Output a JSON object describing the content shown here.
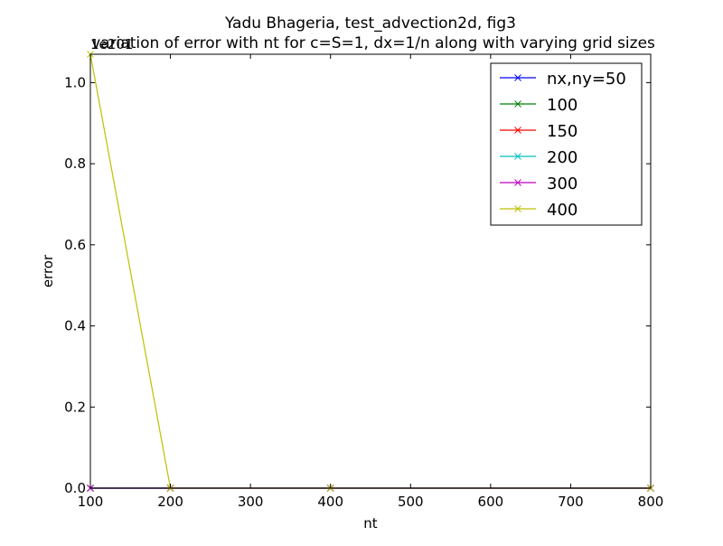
{
  "chart_data": {
    "type": "line",
    "title": "Yadu Bhageria, test_advection2d, fig3",
    "subtitle": "variation of error with nt for c=S=1, dx=1/n along with varying grid sizes",
    "xlabel": "nt",
    "ylabel": "error",
    "y_offset_label": "1e201",
    "xlim": [
      100,
      800
    ],
    "ylim": [
      0,
      1.07
    ],
    "xticks": [
      100,
      200,
      300,
      400,
      500,
      600,
      700,
      800
    ],
    "yticks": [
      0.0,
      0.2,
      0.4,
      0.6,
      0.8,
      1.0
    ],
    "xtick_labels": [
      "100",
      "200",
      "300",
      "400",
      "500",
      "600",
      "700",
      "800"
    ],
    "ytick_labels": [
      "0.0",
      "0.2",
      "0.4",
      "0.6",
      "0.8",
      "1.0"
    ],
    "grid": false,
    "legend_position": "top-right",
    "marker": "x",
    "series": [
      {
        "name": "nx,ny=50",
        "color": "#0000ff",
        "x": [
          100,
          200,
          400,
          800
        ],
        "y": [
          0,
          0,
          0,
          0
        ]
      },
      {
        "name": "100",
        "color": "#008000",
        "x": [
          100,
          200,
          400,
          800
        ],
        "y": [
          0,
          0,
          0,
          0
        ]
      },
      {
        "name": "150",
        "color": "#ff0000",
        "x": [
          100,
          200,
          400,
          800
        ],
        "y": [
          0,
          0,
          0,
          0
        ]
      },
      {
        "name": "200",
        "color": "#00bfbf",
        "x": [
          100,
          200,
          400,
          800
        ],
        "y": [
          0,
          0,
          0,
          0
        ]
      },
      {
        "name": "300",
        "color": "#bf00bf",
        "x": [
          100,
          200,
          400,
          800
        ],
        "y": [
          0,
          0,
          0,
          0
        ]
      },
      {
        "name": "400",
        "color": "#bfbf00",
        "x": [
          100,
          200,
          400,
          800
        ],
        "y": [
          1.07,
          0,
          0,
          0
        ]
      }
    ]
  }
}
